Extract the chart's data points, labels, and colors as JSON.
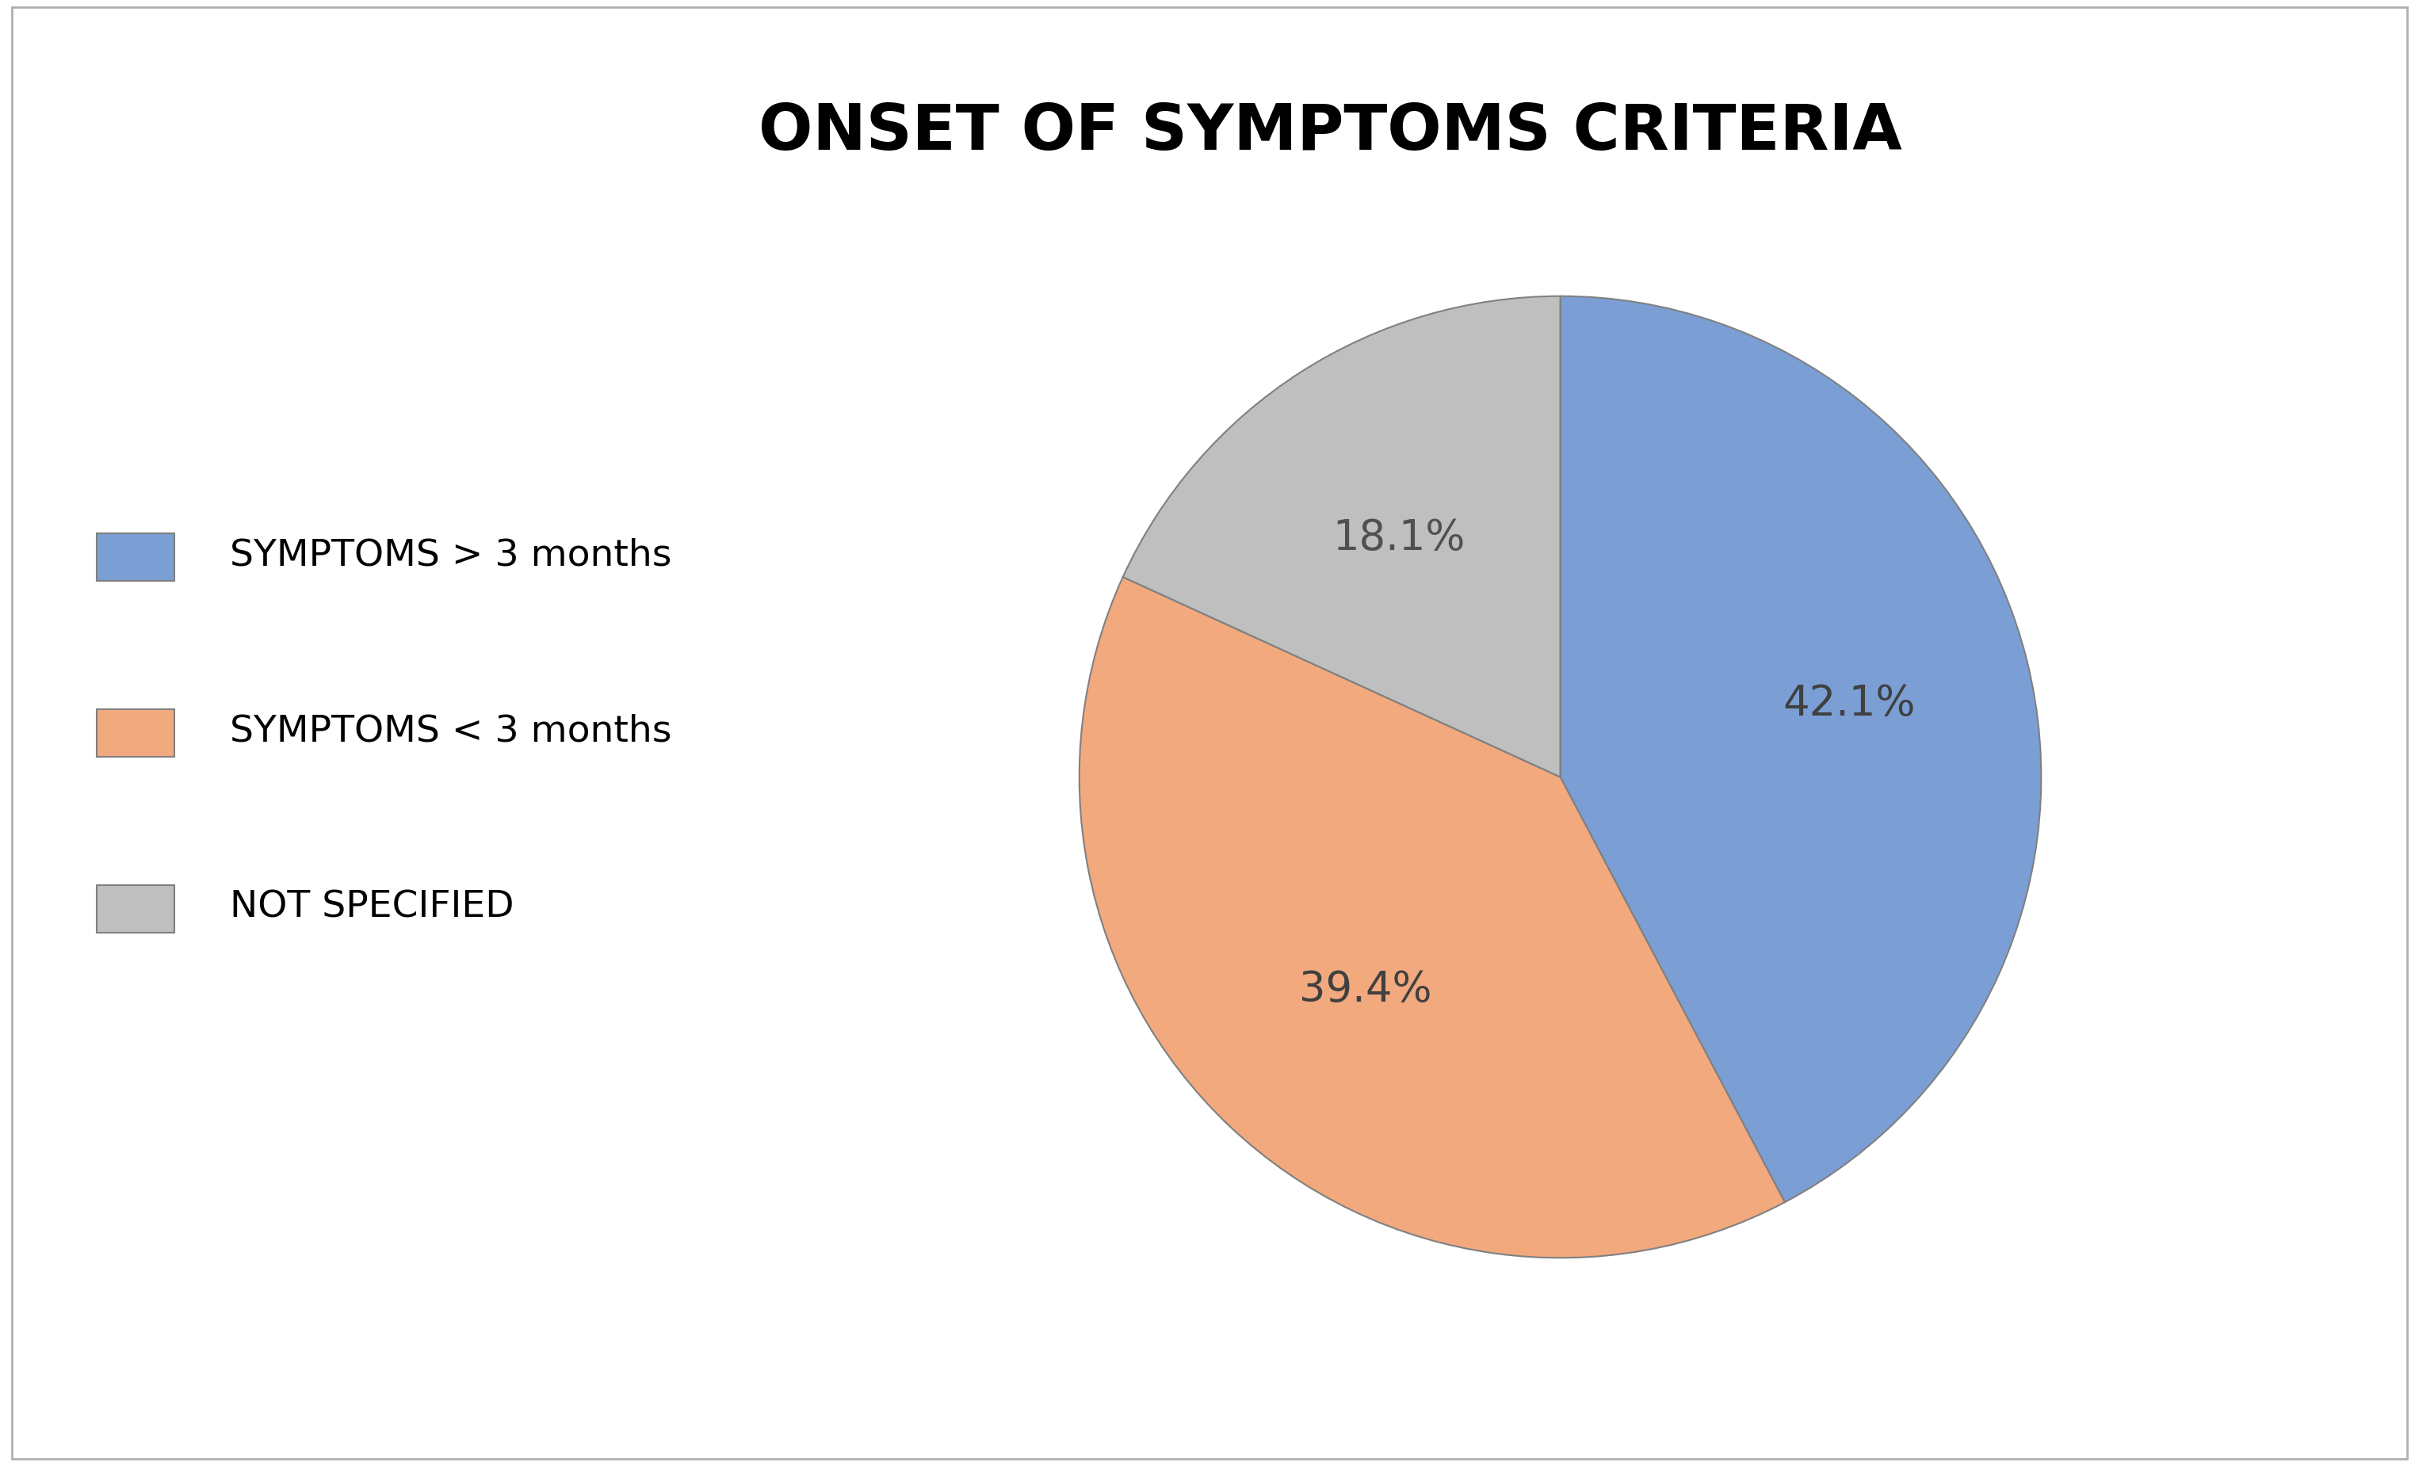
{
  "title": "ONSET OF SYMPTOMS CRITERIA",
  "slices": [
    42.1,
    39.4,
    18.1
  ],
  "labels": [
    "42.1%",
    "39.4%",
    "18.1%"
  ],
  "legend_labels": [
    "SYMPTOMS > 3 months",
    "SYMPTOMS < 3 months",
    "NOT SPECIFIED"
  ],
  "colors": [
    "#7B9FD4",
    "#F2A97E",
    "#BFBFBF"
  ],
  "title_fontsize": 58,
  "label_fontsize": 38,
  "legend_fontsize": 34,
  "background_color": "#ffffff",
  "border_color": "#b0b0b0"
}
